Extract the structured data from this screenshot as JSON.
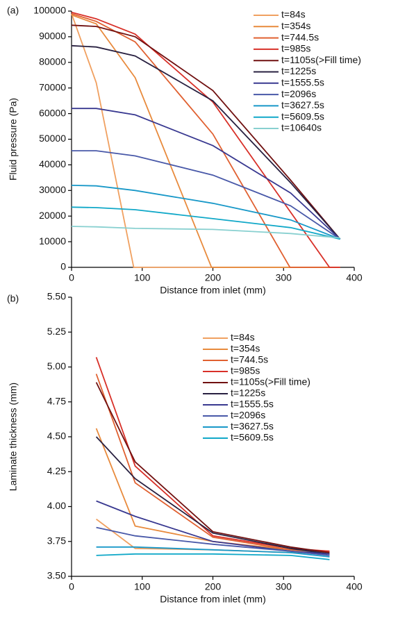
{
  "chart_data": [
    {
      "type": "line",
      "panel_label": "(a)",
      "x_label": "Distance from inlet (mm)",
      "y_label": "Fluid pressure (Pa)",
      "xlim": [
        0,
        400
      ],
      "xticks": [
        0,
        100,
        200,
        300,
        400
      ],
      "ylim": [
        0,
        100000
      ],
      "yticks": [
        0,
        10000,
        20000,
        30000,
        40000,
        50000,
        60000,
        70000,
        80000,
        90000,
        100000
      ],
      "legend": "upper right",
      "series": [
        {
          "name": "t=84s",
          "color": "#f0a060",
          "x": [
            0,
            35,
            88,
            380
          ],
          "values": [
            99000,
            72000,
            0,
            0
          ]
        },
        {
          "name": "t=354s",
          "color": "#e88a3c",
          "x": [
            0,
            35,
            90,
            198,
            380
          ],
          "values": [
            98500,
            95000,
            74000,
            0,
            0
          ]
        },
        {
          "name": "t=744.5s",
          "color": "#e06030",
          "x": [
            0,
            35,
            90,
            200,
            309,
            380
          ],
          "values": [
            99000,
            96000,
            88000,
            52000,
            0,
            0
          ]
        },
        {
          "name": "t=985s",
          "color": "#d83028",
          "x": [
            0,
            35,
            90,
            200,
            365,
            380
          ],
          "values": [
            99500,
            97000,
            91000,
            64500,
            0,
            0
          ]
        },
        {
          "name": "t=1105s(>Fill time)",
          "color": "#701010",
          "x": [
            0,
            35,
            90,
            200,
            310,
            380
          ],
          "values": [
            94500,
            94000,
            90000,
            69000,
            34000,
            11000
          ]
        },
        {
          "name": "t=1225s",
          "color": "#282040",
          "x": [
            0,
            35,
            90,
            200,
            310,
            380
          ],
          "values": [
            86500,
            86000,
            82500,
            65000,
            33000,
            11000
          ]
        },
        {
          "name": "t=1555.5s",
          "color": "#383890",
          "x": [
            0,
            35,
            90,
            200,
            310,
            380
          ],
          "values": [
            62000,
            62000,
            59500,
            47500,
            29000,
            11000
          ]
        },
        {
          "name": "t=2096s",
          "color": "#4858a8",
          "x": [
            0,
            35,
            90,
            200,
            310,
            380
          ],
          "values": [
            45500,
            45500,
            43500,
            36000,
            24000,
            11000
          ]
        },
        {
          "name": "t=3627.5s",
          "color": "#1898c8",
          "x": [
            0,
            35,
            90,
            200,
            310,
            380
          ],
          "values": [
            32000,
            31800,
            30000,
            25000,
            18500,
            11000
          ]
        },
        {
          "name": "t=5609.5s",
          "color": "#10a8c8",
          "x": [
            0,
            35,
            90,
            200,
            310,
            380
          ],
          "values": [
            23500,
            23300,
            22500,
            19000,
            15500,
            11000
          ]
        },
        {
          "name": "t=10640s",
          "color": "#88d0d0",
          "x": [
            0,
            35,
            90,
            200,
            310,
            380
          ],
          "values": [
            16000,
            15800,
            15200,
            14800,
            13200,
            11500
          ]
        }
      ]
    },
    {
      "type": "line",
      "panel_label": "(b)",
      "x_label": "Distance from inlet (mm)",
      "y_label": "Laminate thickness (mm)",
      "xlim": [
        0,
        400
      ],
      "xticks": [
        0,
        100,
        200,
        300,
        400
      ],
      "ylim": [
        3.5,
        5.5
      ],
      "yticks": [
        {
          "value": 3.5,
          "label": "3.50"
        },
        {
          "value": 3.75,
          "label": "3.75"
        },
        {
          "value": 4,
          "label": "4.00"
        },
        {
          "value": 4.25,
          "label": "4.25"
        },
        {
          "value": 4.5,
          "label": "4.50"
        },
        {
          "value": 4.75,
          "label": "4.75"
        },
        {
          "value": 5,
          "label": "5.00"
        },
        {
          "value": 5.25,
          "label": "5.25"
        },
        {
          "value": 5.5,
          "label": "5.50"
        }
      ],
      "legend": "upper right",
      "series": [
        {
          "name": "t=84s",
          "color": "#f0a060",
          "x": [
            35,
            90,
            200,
            310,
            365
          ],
          "values": [
            3.91,
            3.7,
            3.69,
            3.67,
            3.67
          ]
        },
        {
          "name": "t=354s",
          "color": "#e88a3c",
          "x": [
            35,
            90,
            200,
            310,
            365
          ],
          "values": [
            4.56,
            3.86,
            3.75,
            3.69,
            3.67
          ]
        },
        {
          "name": "t=744.5s",
          "color": "#e06030",
          "x": [
            35,
            90,
            200,
            310,
            365
          ],
          "values": [
            4.95,
            4.17,
            3.78,
            3.69,
            3.68
          ]
        },
        {
          "name": "t=985s",
          "color": "#d83028",
          "x": [
            35,
            90,
            200,
            310,
            365
          ],
          "values": [
            5.07,
            4.29,
            3.79,
            3.7,
            3.68
          ]
        },
        {
          "name": "t=1105s(>Fill time)",
          "color": "#701010",
          "x": [
            35,
            90,
            200,
            310,
            365
          ],
          "values": [
            4.89,
            4.32,
            3.82,
            3.71,
            3.67
          ]
        },
        {
          "name": "t=1225s",
          "color": "#282040",
          "x": [
            35,
            90,
            200,
            310,
            365
          ],
          "values": [
            4.5,
            4.2,
            3.81,
            3.7,
            3.66
          ]
        },
        {
          "name": "t=1555.5s",
          "color": "#383890",
          "x": [
            35,
            90,
            200,
            310,
            365
          ],
          "values": [
            4.04,
            3.93,
            3.75,
            3.68,
            3.66
          ]
        },
        {
          "name": "t=2096s",
          "color": "#4858a8",
          "x": [
            35,
            90,
            200,
            310,
            365
          ],
          "values": [
            3.85,
            3.79,
            3.73,
            3.68,
            3.65
          ]
        },
        {
          "name": "t=3627.5s",
          "color": "#1898c8",
          "x": [
            35,
            90,
            200,
            310,
            365
          ],
          "values": [
            3.71,
            3.71,
            3.69,
            3.67,
            3.64
          ]
        },
        {
          "name": "t=5609.5s",
          "color": "#10a8c8",
          "x": [
            35,
            90,
            200,
            310,
            365
          ],
          "values": [
            3.65,
            3.66,
            3.66,
            3.65,
            3.62
          ]
        }
      ]
    }
  ]
}
